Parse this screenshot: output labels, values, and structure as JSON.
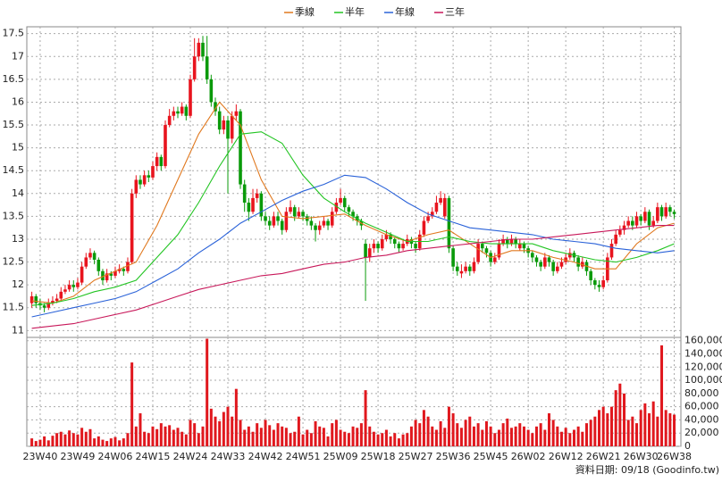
{
  "chart_data": {
    "type": "candlestick",
    "legend": [
      "季線",
      "半年",
      "年線",
      "三年"
    ],
    "date_note": "資料日期: 09/18 (Goodinfo.tw)",
    "up_color": "#e8141e",
    "down_color": "#0a9a0a",
    "volume_color": "#e0181e",
    "grid": true,
    "xlim": [
      -1.2,
      155.6
    ],
    "xticks": [
      {
        "value": 2,
        "label": "23W40"
      },
      {
        "value": 11,
        "label": "23W49"
      },
      {
        "value": 20,
        "label": "24W06"
      },
      {
        "value": 29,
        "label": "24W15"
      },
      {
        "value": 38,
        "label": "24W24"
      },
      {
        "value": 47,
        "label": "24W33"
      },
      {
        "value": 56,
        "label": "24W42"
      },
      {
        "value": 65,
        "label": "24W51"
      },
      {
        "value": 74,
        "label": "25W09"
      },
      {
        "value": 83,
        "label": "25W18"
      },
      {
        "value": 92,
        "label": "25W27"
      },
      {
        "value": 101,
        "label": "25W36"
      },
      {
        "value": 110,
        "label": "25W45"
      },
      {
        "value": 119,
        "label": "26W02"
      },
      {
        "value": 128,
        "label": "26W12"
      },
      {
        "value": 137,
        "label": "26W21"
      },
      {
        "value": 146,
        "label": "26W30"
      },
      {
        "value": 154,
        "label": "26W38"
      }
    ],
    "ylim": [
      10.85,
      17.65
    ],
    "yticks": [
      11,
      11.5,
      12,
      12.5,
      13,
      13.5,
      14,
      14.5,
      15,
      15.5,
      16,
      16.5,
      17,
      17.5
    ],
    "y2lim": [
      0,
      165000
    ],
    "y2ticks": [
      0,
      {
        "value": 20000,
        "label": "20,000"
      },
      {
        "value": 40000,
        "label": "40,000"
      },
      {
        "value": 60000,
        "label": "60,000"
      },
      {
        "value": 80000,
        "label": "80,000"
      },
      {
        "value": 100000,
        "label": "100,000"
      },
      {
        "value": 120000,
        "label": "120,000"
      },
      {
        "value": 140000,
        "label": "140,000"
      },
      {
        "value": 160000,
        "label": "160,000"
      }
    ],
    "ohlc": [
      [
        11.6,
        11.85,
        11.5,
        11.75
      ],
      [
        11.75,
        11.8,
        11.5,
        11.6
      ],
      [
        11.6,
        11.7,
        11.45,
        11.55
      ],
      [
        11.55,
        11.6,
        11.4,
        11.5
      ],
      [
        11.5,
        11.7,
        11.45,
        11.6
      ],
      [
        11.6,
        11.75,
        11.55,
        11.65
      ],
      [
        11.65,
        11.8,
        11.6,
        11.7
      ],
      [
        11.7,
        11.95,
        11.65,
        11.85
      ],
      [
        11.85,
        12.0,
        11.8,
        11.9
      ],
      [
        11.9,
        12.1,
        11.85,
        12.0
      ],
      [
        12.0,
        12.1,
        11.85,
        11.95
      ],
      [
        11.95,
        12.15,
        11.9,
        12.05
      ],
      [
        12.05,
        12.5,
        12.0,
        12.4
      ],
      [
        12.4,
        12.7,
        12.35,
        12.6
      ],
      [
        12.6,
        12.8,
        12.55,
        12.7
      ],
      [
        12.7,
        12.75,
        12.45,
        12.55
      ],
      [
        12.55,
        12.6,
        12.2,
        12.3
      ],
      [
        12.3,
        12.35,
        12.0,
        12.1
      ],
      [
        12.1,
        12.35,
        12.05,
        12.25
      ],
      [
        12.25,
        12.3,
        12.1,
        12.2
      ],
      [
        12.2,
        12.4,
        12.15,
        12.3
      ],
      [
        12.3,
        12.45,
        12.25,
        12.35
      ],
      [
        12.35,
        12.4,
        12.2,
        12.3
      ],
      [
        12.3,
        12.6,
        12.25,
        12.5
      ],
      [
        12.5,
        14.1,
        12.45,
        14.0
      ],
      [
        14.0,
        14.4,
        13.9,
        14.3
      ],
      [
        14.3,
        14.4,
        14.1,
        14.2
      ],
      [
        14.2,
        14.5,
        14.15,
        14.4
      ],
      [
        14.4,
        14.5,
        14.25,
        14.35
      ],
      [
        14.35,
        14.7,
        14.3,
        14.6
      ],
      [
        14.6,
        14.9,
        14.5,
        14.8
      ],
      [
        14.8,
        14.85,
        14.5,
        14.6
      ],
      [
        14.6,
        15.6,
        14.55,
        15.5
      ],
      [
        15.5,
        15.85,
        15.45,
        15.7
      ],
      [
        15.7,
        15.9,
        15.6,
        15.8
      ],
      [
        15.8,
        15.9,
        15.65,
        15.75
      ],
      [
        15.75,
        16.0,
        15.7,
        15.9
      ],
      [
        15.9,
        15.95,
        15.6,
        15.7
      ],
      [
        15.7,
        16.6,
        15.65,
        16.5
      ],
      [
        16.5,
        17.4,
        16.45,
        17.0
      ],
      [
        17.0,
        17.4,
        16.9,
        17.3
      ],
      [
        17.3,
        17.45,
        16.9,
        17.0
      ],
      [
        17.0,
        17.45,
        16.4,
        16.5
      ],
      [
        16.5,
        16.6,
        15.9,
        16.0
      ],
      [
        16.0,
        16.1,
        15.7,
        15.8
      ],
      [
        15.8,
        15.9,
        15.3,
        15.4
      ],
      [
        15.4,
        15.7,
        15.3,
        15.6
      ],
      [
        15.6,
        15.7,
        14.0,
        15.2
      ],
      [
        15.2,
        15.8,
        15.1,
        15.7
      ],
      [
        15.7,
        15.95,
        15.6,
        15.8
      ],
      [
        15.8,
        15.85,
        14.1,
        14.2
      ],
      [
        14.2,
        14.3,
        13.6,
        13.8
      ],
      [
        13.8,
        13.9,
        13.4,
        13.6
      ],
      [
        13.6,
        14.1,
        13.55,
        13.9
      ],
      [
        13.9,
        14.1,
        13.8,
        14.0
      ],
      [
        14.0,
        14.05,
        13.4,
        13.5
      ],
      [
        13.5,
        13.6,
        13.3,
        13.4
      ],
      [
        13.4,
        13.5,
        13.2,
        13.3
      ],
      [
        13.3,
        13.6,
        13.25,
        13.5
      ],
      [
        13.5,
        13.6,
        13.3,
        13.4
      ],
      [
        13.4,
        13.45,
        13.1,
        13.2
      ],
      [
        13.2,
        13.7,
        13.15,
        13.6
      ],
      [
        13.6,
        13.85,
        13.55,
        13.7
      ],
      [
        13.7,
        13.75,
        13.4,
        13.5
      ],
      [
        13.5,
        13.7,
        13.45,
        13.6
      ],
      [
        13.6,
        13.65,
        13.4,
        13.5
      ],
      [
        13.5,
        13.55,
        13.3,
        13.4
      ],
      [
        13.4,
        13.5,
        13.2,
        13.3
      ],
      [
        13.3,
        13.35,
        12.95,
        13.2
      ],
      [
        13.2,
        13.4,
        13.1,
        13.3
      ],
      [
        13.3,
        13.5,
        13.25,
        13.4
      ],
      [
        13.4,
        13.45,
        13.2,
        13.3
      ],
      [
        13.3,
        13.7,
        13.25,
        13.6
      ],
      [
        13.6,
        13.9,
        13.55,
        13.8
      ],
      [
        13.8,
        14.1,
        13.75,
        13.9
      ],
      [
        13.9,
        13.95,
        13.6,
        13.7
      ],
      [
        13.7,
        13.75,
        13.5,
        13.6
      ],
      [
        13.6,
        13.65,
        13.4,
        13.5
      ],
      [
        13.5,
        13.55,
        13.3,
        13.4
      ],
      [
        13.4,
        13.45,
        13.2,
        13.3
      ],
      [
        12.9,
        13.0,
        11.65,
        12.6
      ],
      [
        12.6,
        12.9,
        12.5,
        12.8
      ],
      [
        12.8,
        13.0,
        12.7,
        12.9
      ],
      [
        12.9,
        12.95,
        12.7,
        12.8
      ],
      [
        12.8,
        13.1,
        12.75,
        13.0
      ],
      [
        13.0,
        13.2,
        12.95,
        13.1
      ],
      [
        13.1,
        13.15,
        12.9,
        13.0
      ],
      [
        13.0,
        13.05,
        12.8,
        12.9
      ],
      [
        12.9,
        12.95,
        12.7,
        12.8
      ],
      [
        12.8,
        13.0,
        12.75,
        12.9
      ],
      [
        12.9,
        13.1,
        12.85,
        13.0
      ],
      [
        13.0,
        13.05,
        12.8,
        12.9
      ],
      [
        12.9,
        12.95,
        12.7,
        12.8
      ],
      [
        12.8,
        13.2,
        12.75,
        13.1
      ],
      [
        13.1,
        13.5,
        13.05,
        13.4
      ],
      [
        13.4,
        13.6,
        13.35,
        13.5
      ],
      [
        13.5,
        13.7,
        13.45,
        13.6
      ],
      [
        13.6,
        13.95,
        13.55,
        13.8
      ],
      [
        13.8,
        14.05,
        13.75,
        13.9
      ],
      [
        13.5,
        14.0,
        13.45,
        13.9
      ],
      [
        13.9,
        13.95,
        12.7,
        12.8
      ],
      [
        12.8,
        12.85,
        12.3,
        12.4
      ],
      [
        12.4,
        12.5,
        12.2,
        12.3
      ],
      [
        12.25,
        12.45,
        12.15,
        12.3
      ],
      [
        12.3,
        12.5,
        12.25,
        12.4
      ],
      [
        12.4,
        12.45,
        12.2,
        12.3
      ],
      [
        12.3,
        12.6,
        12.25,
        12.5
      ],
      [
        12.5,
        13.0,
        12.45,
        12.9
      ],
      [
        12.9,
        12.95,
        12.7,
        12.8
      ],
      [
        12.8,
        12.85,
        12.6,
        12.7
      ],
      [
        12.7,
        12.75,
        12.4,
        12.5
      ],
      [
        12.5,
        12.7,
        12.45,
        12.6
      ],
      [
        12.6,
        13.0,
        12.55,
        12.9
      ],
      [
        12.9,
        13.1,
        12.85,
        13.0
      ],
      [
        13.0,
        13.05,
        12.8,
        12.9
      ],
      [
        12.9,
        13.1,
        12.85,
        13.0
      ],
      [
        13.0,
        13.05,
        12.8,
        12.9
      ],
      [
        12.8,
        13.0,
        12.75,
        12.9
      ],
      [
        12.9,
        12.95,
        12.7,
        12.8
      ],
      [
        12.8,
        12.85,
        12.6,
        12.7
      ],
      [
        12.7,
        12.75,
        12.5,
        12.6
      ],
      [
        12.6,
        12.65,
        12.4,
        12.5
      ],
      [
        12.5,
        12.55,
        12.3,
        12.4
      ],
      [
        12.4,
        12.7,
        12.35,
        12.6
      ],
      [
        12.6,
        12.65,
        12.4,
        12.5
      ],
      [
        12.5,
        12.55,
        12.2,
        12.3
      ],
      [
        12.3,
        12.5,
        12.25,
        12.4
      ],
      [
        12.4,
        12.6,
        12.35,
        12.5
      ],
      [
        12.5,
        12.7,
        12.45,
        12.6
      ],
      [
        12.6,
        12.8,
        12.55,
        12.7
      ],
      [
        12.7,
        12.75,
        12.5,
        12.6
      ],
      [
        12.6,
        12.65,
        12.3,
        12.4
      ],
      [
        12.4,
        12.6,
        12.35,
        12.5
      ],
      [
        12.5,
        12.55,
        12.2,
        12.3
      ],
      [
        12.3,
        12.35,
        12.0,
        12.1
      ],
      [
        12.1,
        12.15,
        11.9,
        12.0
      ],
      [
        12.0,
        12.1,
        11.85,
        11.95
      ],
      [
        11.95,
        12.2,
        11.9,
        12.1
      ],
      [
        12.1,
        12.7,
        12.05,
        12.6
      ],
      [
        12.6,
        13.0,
        12.55,
        12.9
      ],
      [
        12.9,
        13.2,
        12.85,
        13.1
      ],
      [
        13.1,
        13.3,
        13.05,
        13.2
      ],
      [
        13.2,
        13.4,
        13.1,
        13.3
      ],
      [
        13.3,
        13.5,
        13.25,
        13.4
      ],
      [
        13.4,
        13.5,
        13.2,
        13.3
      ],
      [
        13.3,
        13.6,
        13.25,
        13.5
      ],
      [
        13.5,
        13.55,
        13.3,
        13.4
      ],
      [
        13.4,
        13.7,
        13.35,
        13.6
      ],
      [
        13.6,
        13.65,
        13.2,
        13.3
      ],
      [
        13.3,
        13.5,
        13.25,
        13.4
      ],
      [
        13.4,
        13.8,
        13.35,
        13.7
      ],
      [
        13.7,
        13.75,
        13.4,
        13.5
      ],
      [
        13.5,
        13.8,
        13.45,
        13.7
      ],
      [
        13.7,
        13.75,
        13.5,
        13.6
      ],
      [
        13.6,
        13.65,
        13.45,
        13.55
      ]
    ],
    "volume": [
      12000,
      8000,
      10000,
      15000,
      9000,
      16000,
      20000,
      22000,
      18000,
      24000,
      20000,
      18000,
      28000,
      22000,
      26000,
      12000,
      15000,
      10000,
      8000,
      12000,
      14000,
      9000,
      12000,
      20000,
      127000,
      30000,
      50000,
      22000,
      20000,
      30000,
      26000,
      35000,
      30000,
      32000,
      25000,
      28000,
      22000,
      18000,
      40000,
      35000,
      20000,
      30000,
      163000,
      57000,
      45000,
      38000,
      52000,
      60000,
      45000,
      87000,
      40000,
      25000,
      30000,
      22000,
      35000,
      28000,
      40000,
      32000,
      25000,
      35000,
      30000,
      28000,
      20000,
      22000,
      45000,
      18000,
      25000,
      20000,
      38000,
      30000,
      28000,
      15000,
      35000,
      40000,
      25000,
      22000,
      20000,
      30000,
      28000,
      35000,
      85000,
      30000,
      22000,
      18000,
      20000,
      25000,
      15000,
      20000,
      12000,
      18000,
      20000,
      30000,
      40000,
      35000,
      55000,
      45000,
      30000,
      25000,
      38000,
      28000,
      60000,
      50000,
      35000,
      28000,
      40000,
      45000,
      30000,
      35000,
      25000,
      38000,
      30000,
      20000,
      25000,
      35000,
      42000,
      28000,
      30000,
      35000,
      30000,
      25000,
      20000,
      30000,
      35000,
      25000,
      50000,
      40000,
      30000,
      22000,
      28000,
      20000,
      25000,
      30000,
      22000,
      35000,
      40000,
      45000,
      55000,
      60000,
      50000,
      60000,
      85000,
      95000,
      80000,
      40000,
      45000,
      35000,
      55000,
      65000,
      50000,
      68000,
      45000,
      153000,
      55000,
      50000,
      48000
    ],
    "ma_x": [
      0,
      5,
      10,
      15,
      20,
      25,
      30,
      35,
      40,
      45,
      50,
      55,
      60,
      65,
      70,
      75,
      80,
      85,
      90,
      95,
      100,
      105,
      110,
      115,
      120,
      125,
      130,
      135,
      140,
      145,
      150,
      154
    ],
    "series": [
      {
        "name": "季線",
        "color": "#e0781e",
        "values": [
          11.65,
          11.6,
          11.75,
          12.1,
          12.3,
          12.5,
          13.3,
          14.3,
          15.3,
          16.0,
          15.5,
          14.3,
          13.5,
          13.45,
          13.5,
          13.55,
          13.3,
          13.1,
          12.95,
          13.1,
          13.2,
          12.9,
          12.6,
          12.75,
          12.75,
          12.6,
          12.5,
          12.35,
          12.35,
          12.9,
          13.25,
          13.35
        ]
      },
      {
        "name": "半年",
        "color": "#22c422",
        "values": [
          11.55,
          11.6,
          11.7,
          11.85,
          11.95,
          12.1,
          12.6,
          13.1,
          13.8,
          14.6,
          15.3,
          15.35,
          15.1,
          14.4,
          13.9,
          13.6,
          13.35,
          13.15,
          12.95,
          12.95,
          13.05,
          12.95,
          12.9,
          12.9,
          12.9,
          12.75,
          12.65,
          12.55,
          12.5,
          12.6,
          12.75,
          12.9
        ]
      },
      {
        "name": "年線",
        "color": "#2a62d8",
        "values": [
          11.3,
          11.4,
          11.5,
          11.6,
          11.7,
          11.85,
          12.1,
          12.35,
          12.7,
          13.0,
          13.35,
          13.6,
          13.85,
          14.05,
          14.2,
          14.4,
          14.35,
          14.1,
          13.8,
          13.55,
          13.4,
          13.25,
          13.2,
          13.15,
          13.1,
          13.0,
          12.95,
          12.9,
          12.8,
          12.75,
          12.7,
          12.75
        ]
      },
      {
        "name": "三年",
        "color": "#c8185a",
        "values": [
          11.05,
          11.1,
          11.15,
          11.25,
          11.35,
          11.45,
          11.6,
          11.75,
          11.9,
          12.0,
          12.1,
          12.2,
          12.25,
          12.35,
          12.45,
          12.5,
          12.6,
          12.65,
          12.75,
          12.8,
          12.85,
          12.9,
          12.95,
          13.0,
          13.0,
          13.05,
          13.1,
          13.15,
          13.2,
          13.25,
          13.3,
          13.3
        ]
      }
    ]
  }
}
